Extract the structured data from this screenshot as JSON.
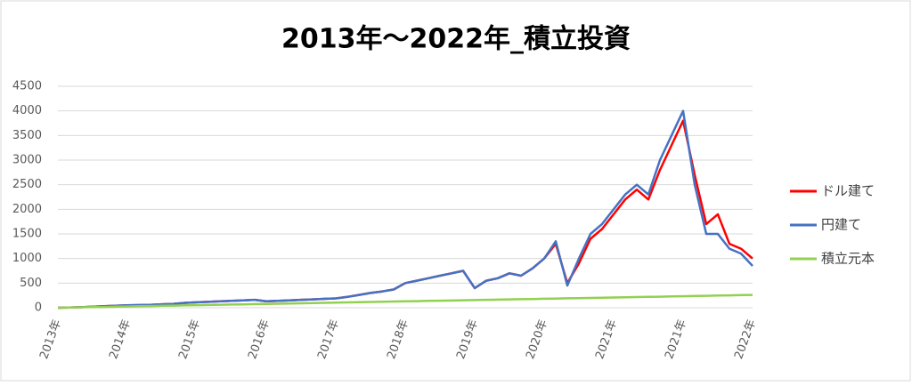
{
  "chart_data": {
    "type": "line",
    "title": "2013年～2022年_積立投資",
    "categories": [
      "2013年",
      null,
      null,
      null,
      null,
      null,
      "2014年",
      null,
      null,
      null,
      null,
      null,
      "2015年",
      null,
      null,
      null,
      null,
      null,
      "2016年",
      null,
      null,
      null,
      null,
      null,
      "2017年",
      null,
      null,
      null,
      null,
      null,
      "2018年",
      null,
      null,
      null,
      null,
      null,
      "2019年",
      null,
      null,
      null,
      null,
      null,
      "2020年",
      null,
      null,
      null,
      null,
      null,
      "2021年",
      null,
      null,
      null,
      null,
      null,
      "2021年",
      null,
      null,
      null,
      null,
      null,
      "2022年"
    ],
    "series": [
      {
        "name": "ドル建て",
        "color": "#ff0000",
        "values": [
          0,
          5,
          10,
          20,
          30,
          40,
          50,
          55,
          60,
          70,
          80,
          100,
          110,
          120,
          130,
          140,
          150,
          160,
          130,
          140,
          150,
          160,
          170,
          180,
          190,
          220,
          260,
          300,
          330,
          370,
          500,
          550,
          600,
          650,
          700,
          750,
          400,
          550,
          600,
          700,
          650,
          800,
          1000,
          1300,
          500,
          900,
          1400,
          1600,
          1900,
          2200,
          2400,
          2200,
          2800,
          3300,
          3800,
          2700,
          1700,
          1900,
          1300,
          1200,
          1000
        ]
      },
      {
        "name": "円建て",
        "color": "#4472c4",
        "values": [
          0,
          5,
          10,
          20,
          30,
          40,
          50,
          55,
          60,
          70,
          80,
          100,
          110,
          120,
          130,
          140,
          150,
          160,
          130,
          140,
          150,
          160,
          170,
          180,
          190,
          220,
          260,
          300,
          330,
          370,
          500,
          550,
          600,
          650,
          700,
          750,
          400,
          550,
          600,
          700,
          650,
          800,
          1000,
          1350,
          450,
          1000,
          1500,
          1700,
          2000,
          2300,
          2500,
          2300,
          3000,
          3500,
          4000,
          2500,
          1500,
          1500,
          1200,
          1100,
          850
        ]
      },
      {
        "name": "積立元本",
        "color": "#92d050",
        "values": [
          0,
          4,
          9,
          13,
          17,
          22,
          26,
          30,
          35,
          39,
          43,
          48,
          52,
          56,
          61,
          65,
          69,
          74,
          78,
          82,
          87,
          91,
          95,
          100,
          104,
          108,
          113,
          117,
          121,
          126,
          130,
          134,
          139,
          143,
          147,
          152,
          156,
          160,
          165,
          169,
          173,
          178,
          182,
          186,
          191,
          195,
          199,
          204,
          208,
          212,
          217,
          221,
          225,
          230,
          234,
          238,
          243,
          247,
          251,
          256,
          260
        ]
      }
    ],
    "ylim": [
      0,
      4500
    ],
    "yticks": [
      0,
      500,
      1000,
      1500,
      2000,
      2500,
      3000,
      3500,
      4000,
      4500
    ],
    "grid": true,
    "legend": "right"
  }
}
